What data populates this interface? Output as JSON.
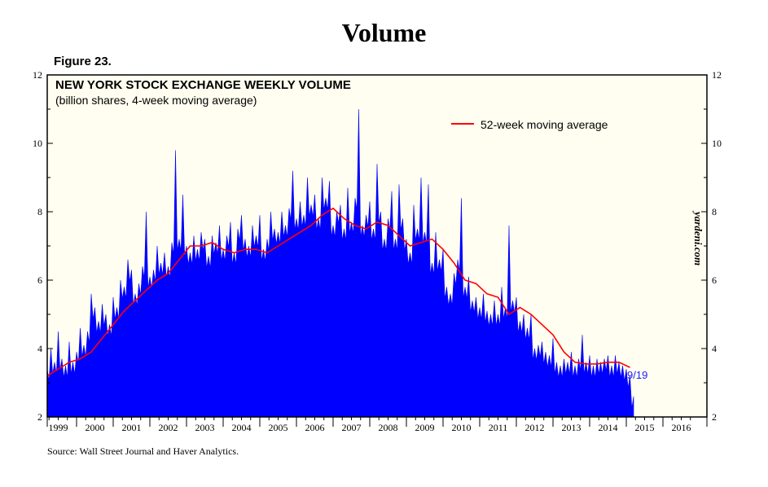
{
  "page": {
    "title": "Volume",
    "figure_label": "Figure 23.",
    "source": "Source: Wall Street Journal and Haver Analytics.",
    "watermark": "yardeni.com"
  },
  "colors": {
    "plot_background": "#fffef0",
    "volume_fill": "#0000ff",
    "moving_average": "#ff0000",
    "end_label": "#1a1aff"
  },
  "chart_data": {
    "type": "area",
    "title": "NEW YORK STOCK EXCHANGE WEEKLY VOLUME",
    "subtitle": "(billion shares, 4-week moving average)",
    "xlim": [
      1998.7,
      2016.7
    ],
    "ylim": [
      2,
      12
    ],
    "y_ticks": [
      "2",
      "4",
      "6",
      "8",
      "10",
      "12"
    ],
    "x_tick_labels": [
      "1999",
      "2000",
      "2001",
      "2002",
      "2003",
      "2004",
      "2005",
      "2006",
      "2007",
      "2008",
      "2009",
      "2010",
      "2011",
      "2012",
      "2013",
      "2014",
      "2015",
      "2016"
    ],
    "legend_position": "top-right",
    "end_label": "9/19",
    "grid": false,
    "series": [
      {
        "kind": "area",
        "x": [
          1998.7,
          1998.8,
          1998.9,
          1999.0,
          1999.1,
          1999.2,
          1999.3,
          1999.4,
          1999.5,
          1999.6,
          1999.7,
          1999.8,
          1999.9,
          2000.0,
          2000.1,
          2000.2,
          2000.3,
          2000.4,
          2000.5,
          2000.6,
          2000.7,
          2000.8,
          2000.9,
          2001.0,
          2001.1,
          2001.2,
          2001.3,
          2001.4,
          2001.5,
          2001.6,
          2001.7,
          2001.8,
          2001.9,
          2002.0,
          2002.1,
          2002.2,
          2002.3,
          2002.4,
          2002.5,
          2002.6,
          2002.7,
          2002.8,
          2002.9,
          2003.0,
          2003.1,
          2003.2,
          2003.3,
          2003.4,
          2003.5,
          2003.6,
          2003.7,
          2003.8,
          2003.9,
          2004.0,
          2004.1,
          2004.2,
          2004.3,
          2004.4,
          2004.5,
          2004.6,
          2004.7,
          2004.8,
          2004.9,
          2005.0,
          2005.1,
          2005.2,
          2005.3,
          2005.4,
          2005.5,
          2005.6,
          2005.7,
          2005.8,
          2005.9,
          2006.0,
          2006.1,
          2006.2,
          2006.3,
          2006.4,
          2006.5,
          2006.6,
          2006.7,
          2006.8,
          2006.9,
          2007.0,
          2007.1,
          2007.2,
          2007.3,
          2007.4,
          2007.5,
          2007.6,
          2007.7,
          2007.8,
          2007.9,
          2008.0,
          2008.1,
          2008.2,
          2008.3,
          2008.4,
          2008.5,
          2008.6,
          2008.7,
          2008.8,
          2008.9,
          2009.0,
          2009.1,
          2009.2,
          2009.3,
          2009.4,
          2009.5,
          2009.6,
          2009.7,
          2009.8,
          2009.9,
          2010.0,
          2010.1,
          2010.2,
          2010.3,
          2010.4,
          2010.5,
          2010.6,
          2010.7,
          2010.8,
          2010.9,
          2011.0,
          2011.1,
          2011.2,
          2011.3,
          2011.4,
          2011.5,
          2011.6,
          2011.7,
          2011.8,
          2011.9,
          2012.0,
          2012.1,
          2012.2,
          2012.3,
          2012.4,
          2012.5,
          2012.6,
          2012.7,
          2012.8,
          2012.9,
          2013.0,
          2013.1,
          2013.2,
          2013.3,
          2013.4,
          2013.5,
          2013.6,
          2013.7,
          2013.8,
          2013.9,
          2014.0,
          2014.1,
          2014.2,
          2014.3,
          2014.4,
          2014.5,
          2014.6,
          2014.7
        ],
        "values": [
          3.4,
          4.0,
          3.6,
          4.5,
          3.7,
          3.5,
          4.2,
          3.6,
          3.9,
          4.6,
          4.1,
          4.5,
          5.6,
          5.2,
          4.8,
          5.3,
          5.0,
          4.7,
          5.5,
          5.2,
          6.0,
          5.8,
          6.6,
          6.3,
          5.6,
          5.9,
          6.4,
          8.0,
          6.1,
          6.3,
          7.0,
          6.5,
          6.8,
          6.4,
          7.1,
          9.8,
          7.2,
          8.5,
          7.0,
          6.8,
          7.3,
          6.9,
          7.4,
          7.2,
          6.7,
          7.3,
          7.1,
          7.6,
          6.9,
          7.3,
          7.7,
          6.8,
          7.5,
          7.9,
          7.2,
          7.0,
          7.6,
          7.3,
          7.9,
          6.9,
          7.2,
          8.0,
          7.5,
          7.4,
          8.0,
          7.6,
          8.1,
          9.2,
          7.8,
          8.3,
          7.9,
          9.0,
          8.2,
          8.5,
          7.8,
          9.0,
          8.4,
          8.9,
          7.6,
          8.0,
          8.2,
          7.5,
          8.7,
          7.7,
          8.4,
          11.0,
          7.6,
          7.9,
          8.3,
          7.5,
          9.4,
          8.0,
          7.2,
          7.8,
          8.6,
          7.2,
          8.8,
          7.8,
          7.2,
          6.8,
          8.2,
          7.5,
          9.0,
          7.4,
          8.8,
          6.5,
          7.4,
          6.6,
          6.9,
          5.8,
          5.6,
          6.2,
          6.6,
          8.4,
          5.8,
          6.1,
          5.4,
          5.5,
          5.2,
          5.6,
          5.1,
          5.0,
          5.4,
          5.0,
          5.8,
          5.2,
          7.6,
          5.4,
          5.5,
          4.8,
          5.0,
          4.6,
          5.0,
          4.0,
          4.1,
          4.2,
          3.9,
          3.8,
          4.3,
          3.6,
          3.5,
          3.7,
          3.6,
          3.9,
          3.5,
          3.7,
          4.4,
          3.6,
          3.8,
          3.5,
          3.7,
          3.6,
          3.7,
          3.8,
          3.5,
          3.8,
          3.6,
          3.5,
          3.4,
          3.2,
          2.6
        ]
      },
      {
        "name": "52-week moving average",
        "kind": "line",
        "x": [
          1998.7,
          1999.0,
          1999.3,
          1999.6,
          1999.9,
          2000.2,
          2000.5,
          2000.8,
          2001.1,
          2001.4,
          2001.7,
          2002.0,
          2002.3,
          2002.6,
          2002.9,
          2003.2,
          2003.5,
          2003.8,
          2004.1,
          2004.4,
          2004.7,
          2005.0,
          2005.3,
          2005.6,
          2005.9,
          2006.2,
          2006.5,
          2006.8,
          2007.1,
          2007.4,
          2007.7,
          2008.0,
          2008.3,
          2008.6,
          2008.9,
          2009.2,
          2009.5,
          2009.8,
          2010.1,
          2010.4,
          2010.7,
          2011.0,
          2011.3,
          2011.6,
          2011.9,
          2012.2,
          2012.5,
          2012.8,
          2013.1,
          2013.4,
          2013.7,
          2014.0,
          2014.3,
          2014.6
        ],
        "values": [
          3.2,
          3.4,
          3.6,
          3.7,
          3.9,
          4.3,
          4.7,
          5.1,
          5.4,
          5.7,
          6.0,
          6.2,
          6.6,
          7.0,
          7.0,
          7.1,
          6.9,
          6.8,
          6.9,
          6.9,
          6.8,
          7.0,
          7.2,
          7.4,
          7.6,
          7.9,
          8.1,
          7.8,
          7.6,
          7.5,
          7.7,
          7.6,
          7.3,
          7.0,
          7.1,
          7.2,
          6.9,
          6.5,
          6.0,
          5.9,
          5.6,
          5.5,
          5.0,
          5.2,
          5.0,
          4.7,
          4.4,
          3.9,
          3.6,
          3.55,
          3.55,
          3.6,
          3.6,
          3.45
        ]
      }
    ]
  }
}
